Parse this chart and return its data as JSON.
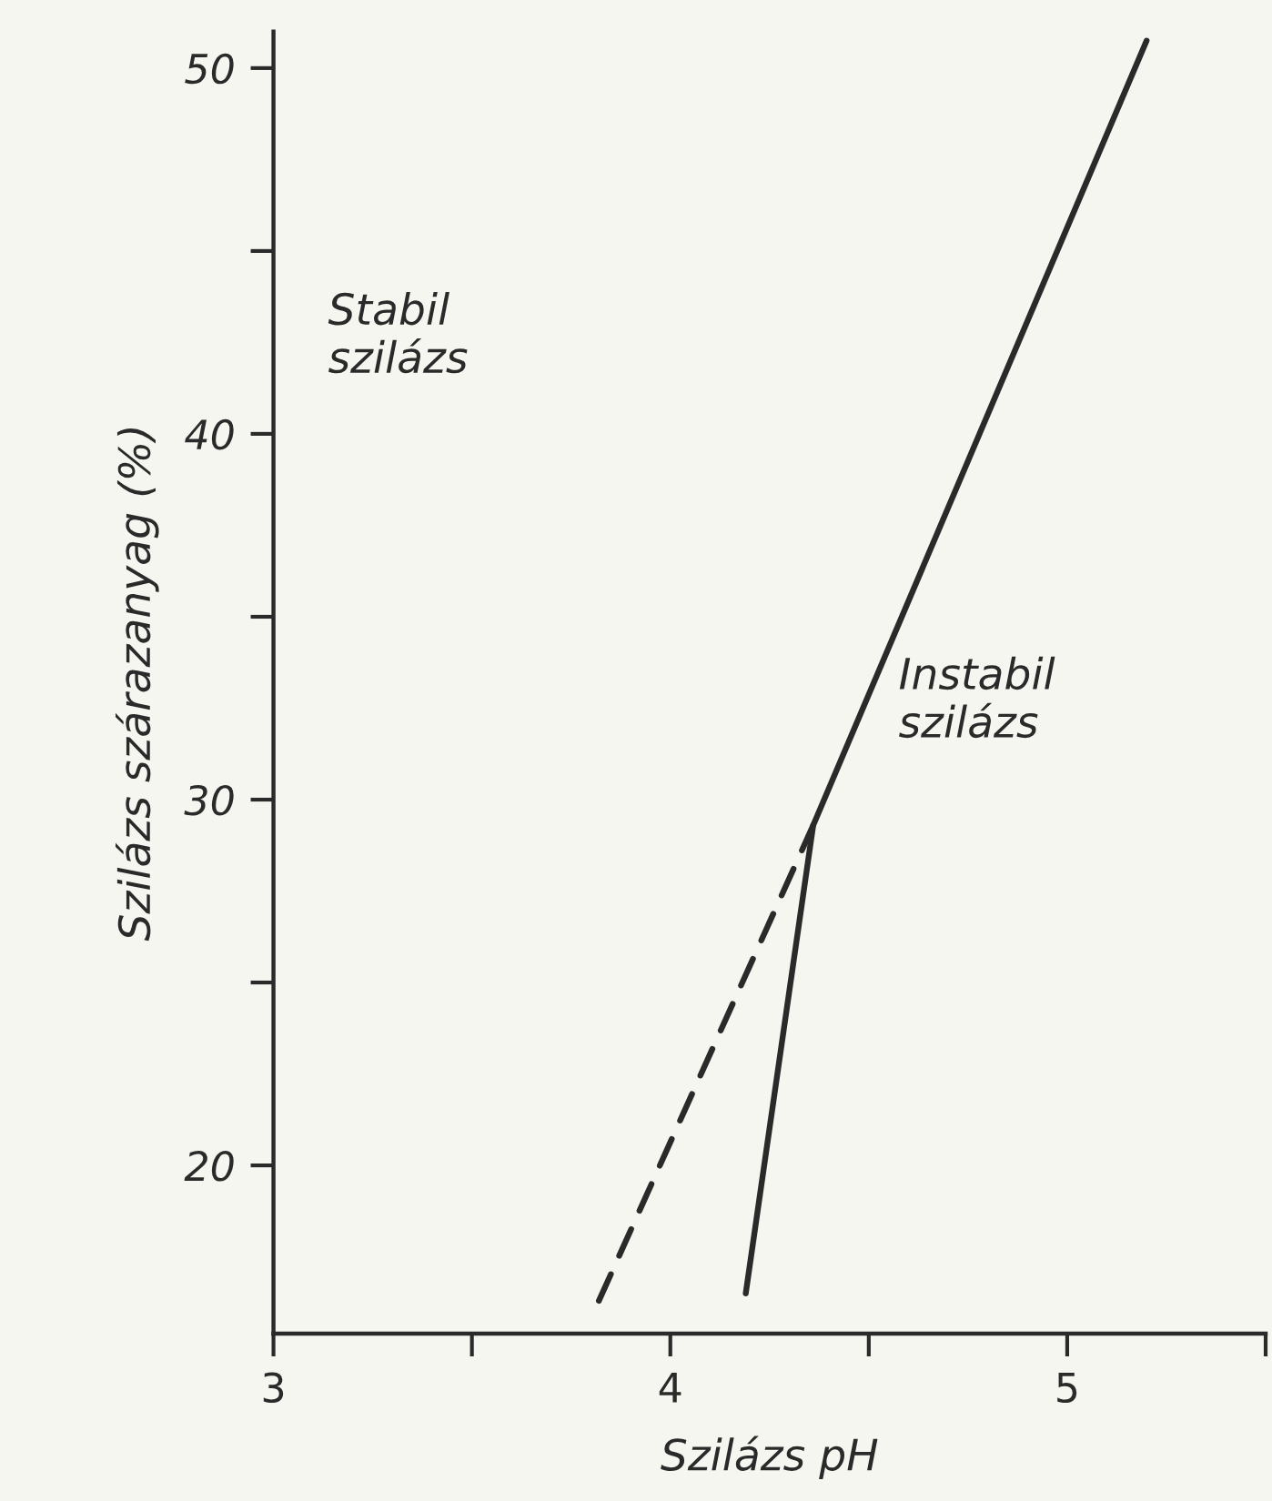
{
  "chart_data": {
    "type": "line",
    "xlabel": "Szilázs pH",
    "ylabel": "Szilázs szárazanyag (%)",
    "xlim": [
      3,
      5.5
    ],
    "ylim": [
      15.4,
      51
    ],
    "xticks": [
      3,
      {
        "value": 3.5,
        "label": null
      },
      4,
      {
        "value": 4.5,
        "label": null
      },
      5,
      {
        "value": 5.5,
        "label": null
      }
    ],
    "yticks": [
      20,
      {
        "value": 25,
        "label": null
      },
      30,
      {
        "value": 35,
        "label": null
      },
      40,
      {
        "value": 45,
        "label": null
      },
      50
    ],
    "series": [
      {
        "color": "#2a2a2a",
        "x": [
          4.19,
          4.36,
          5.2
        ],
        "values": [
          16.5,
          29.3,
          50.75
        ],
        "line_style": "solid"
      },
      {
        "color": "#2a2a2a",
        "x": [
          3.82,
          4.36
        ],
        "values": [
          16.3,
          29.3
        ],
        "line_style": "dashed"
      }
    ],
    "annotations": [
      "Stabil\nszilázs",
      "Instabil\nszilázs"
    ],
    "grid": false,
    "legend": false
  }
}
